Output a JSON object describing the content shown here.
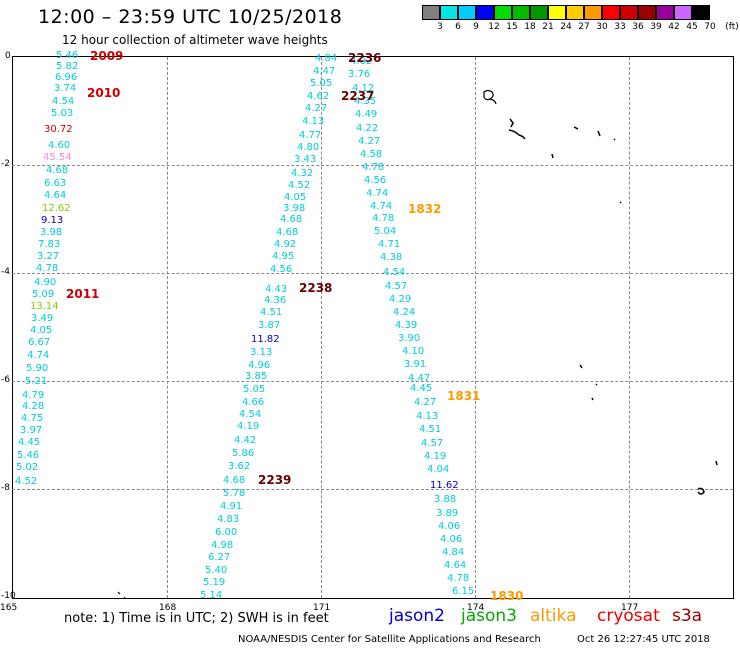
{
  "title": "12:00 – 23:59 UTC 10/25/2018",
  "subtitle": "12 hour collection of altimeter wave heights",
  "legend": {
    "labels": [
      "3",
      "6",
      "9",
      "12",
      "15",
      "18",
      "21",
      "24",
      "27",
      "30",
      "33",
      "36",
      "39",
      "42",
      "45",
      "70",
      "(ft)"
    ],
    "colors": [
      "#7f7f7f",
      "#00e6e6",
      "#00ccff",
      "#0000ff",
      "#00dd00",
      "#00bb00",
      "#009900",
      "#ffff00",
      "#ffcc00",
      "#ff9900",
      "#ff0000",
      "#cc0000",
      "#990000",
      "#990099",
      "#cc66ff",
      "#000000"
    ]
  },
  "axes": {
    "lon_ticks": [
      "165",
      "168",
      "171",
      "174",
      "177"
    ],
    "lat_ticks": [
      "0",
      "-2",
      "-4",
      "-6",
      "-8",
      "-10"
    ]
  },
  "observations": [
    {
      "v": "5.46",
      "c": "#00ccdd"
    },
    {
      "v": "5.82",
      "c": "#00ccdd"
    },
    {
      "v": "6.96",
      "c": "#00ccdd"
    },
    {
      "v": "3.74",
      "c": "#00ccdd"
    },
    {
      "v": "4.54",
      "c": "#00ccdd"
    },
    {
      "v": "5.03",
      "c": "#00ccdd"
    },
    {
      "v": "30.72",
      "c": "#cc0000"
    },
    {
      "v": "4.60",
      "c": "#00ccdd"
    },
    {
      "v": "45.54",
      "c": "#ee88ee"
    },
    {
      "v": "4.68",
      "c": "#00ccdd"
    },
    {
      "v": "6.63",
      "c": "#00ccdd"
    },
    {
      "v": "4.64",
      "c": "#00ccdd"
    },
    {
      "v": "12.62",
      "c": "#88cc00"
    },
    {
      "v": "9.13",
      "c": "#0000cc"
    },
    {
      "v": "3.98",
      "c": "#00ccdd"
    },
    {
      "v": "7.83",
      "c": "#00ccdd"
    },
    {
      "v": "3.27",
      "c": "#00ccdd"
    },
    {
      "v": "4.78",
      "c": "#00ccdd"
    },
    {
      "v": "4.90",
      "c": "#00ccdd"
    },
    {
      "v": "5.09",
      "c": "#00ccdd"
    },
    {
      "v": "13.14",
      "c": "#88cc00"
    },
    {
      "v": "3.49",
      "c": "#00ccdd"
    },
    {
      "v": "4.05",
      "c": "#00ccdd"
    },
    {
      "v": "6.67",
      "c": "#00ccdd"
    },
    {
      "v": "4.74",
      "c": "#00ccdd"
    },
    {
      "v": "5.90",
      "c": "#00ccdd"
    },
    {
      "v": "5.21",
      "c": "#00ccdd"
    },
    {
      "v": "4.79",
      "c": "#00ccdd"
    },
    {
      "v": "4.28",
      "c": "#00ccdd"
    },
    {
      "v": "4.75",
      "c": "#00ccdd"
    },
    {
      "v": "3.97",
      "c": "#00ccdd"
    },
    {
      "v": "4.45",
      "c": "#00ccdd"
    },
    {
      "v": "5.46",
      "c": "#00ccdd"
    },
    {
      "v": "5.02",
      "c": "#00ccdd"
    },
    {
      "v": "4.52",
      "c": "#00ccdd"
    },
    {
      "v": "4.84",
      "c": "#00ccdd"
    },
    {
      "v": "4.47",
      "c": "#00ccdd"
    },
    {
      "v": "5.05",
      "c": "#00ccdd"
    },
    {
      "v": "4.62",
      "c": "#00ccdd"
    },
    {
      "v": "4.27",
      "c": "#00ccdd"
    },
    {
      "v": "4.13",
      "c": "#00ccdd"
    },
    {
      "v": "4.77",
      "c": "#00ccdd"
    },
    {
      "v": "4.80",
      "c": "#00ccdd"
    },
    {
      "v": "3.43",
      "c": "#00ccdd"
    },
    {
      "v": "4.32",
      "c": "#00ccdd"
    },
    {
      "v": "4.52",
      "c": "#00ccdd"
    },
    {
      "v": "4.05",
      "c": "#00ccdd"
    },
    {
      "v": "3.98",
      "c": "#00ccdd"
    },
    {
      "v": "4.68",
      "c": "#00ccdd"
    },
    {
      "v": "4.68",
      "c": "#00ccdd"
    },
    {
      "v": "4.92",
      "c": "#00ccdd"
    },
    {
      "v": "4.95",
      "c": "#00ccdd"
    },
    {
      "v": "4.56",
      "c": "#00ccdd"
    },
    {
      "v": "4.43",
      "c": "#00ccdd"
    },
    {
      "v": "4.36",
      "c": "#00ccdd"
    },
    {
      "v": "4.51",
      "c": "#00ccdd"
    },
    {
      "v": "3.87",
      "c": "#00ccdd"
    },
    {
      "v": "11.82",
      "c": "#0000cc"
    },
    {
      "v": "3.13",
      "c": "#00ccdd"
    },
    {
      "v": "4.96",
      "c": "#00ccdd"
    },
    {
      "v": "3.85",
      "c": "#00ccdd"
    },
    {
      "v": "5.05",
      "c": "#00ccdd"
    },
    {
      "v": "4.66",
      "c": "#00ccdd"
    },
    {
      "v": "4.54",
      "c": "#00ccdd"
    },
    {
      "v": "4.19",
      "c": "#00ccdd"
    },
    {
      "v": "4.42",
      "c": "#00ccdd"
    },
    {
      "v": "5.86",
      "c": "#00ccdd"
    },
    {
      "v": "3.62",
      "c": "#00ccdd"
    },
    {
      "v": "4.68",
      "c": "#00ccdd"
    },
    {
      "v": "5.78",
      "c": "#00ccdd"
    },
    {
      "v": "4.91",
      "c": "#00ccdd"
    },
    {
      "v": "4.83",
      "c": "#00ccdd"
    },
    {
      "v": "6.00",
      "c": "#00ccdd"
    },
    {
      "v": "4.98",
      "c": "#00ccdd"
    },
    {
      "v": "6.27",
      "c": "#00ccdd"
    },
    {
      "v": "5.40",
      "c": "#00ccdd"
    },
    {
      "v": "5.19",
      "c": "#00ccdd"
    },
    {
      "v": "5.14",
      "c": "#00ccdd"
    },
    {
      "v": "4.02",
      "c": "#00ccdd"
    },
    {
      "v": "3.76",
      "c": "#00ccdd"
    },
    {
      "v": "4.12",
      "c": "#00ccdd"
    },
    {
      "v": "4.35",
      "c": "#00ccdd"
    },
    {
      "v": "4.49",
      "c": "#00ccdd"
    },
    {
      "v": "4.22",
      "c": "#00ccdd"
    },
    {
      "v": "4.27",
      "c": "#00ccdd"
    },
    {
      "v": "4.58",
      "c": "#00ccdd"
    },
    {
      "v": "4.78",
      "c": "#00ccdd"
    },
    {
      "v": "4.56",
      "c": "#00ccdd"
    },
    {
      "v": "4.74",
      "c": "#00ccdd"
    },
    {
      "v": "4.74",
      "c": "#00ccdd"
    },
    {
      "v": "4.78",
      "c": "#00ccdd"
    },
    {
      "v": "5.04",
      "c": "#00ccdd"
    },
    {
      "v": "4.71",
      "c": "#00ccdd"
    },
    {
      "v": "4.38",
      "c": "#00ccdd"
    },
    {
      "v": "4.54",
      "c": "#00ccdd"
    },
    {
      "v": "4.57",
      "c": "#00ccdd"
    },
    {
      "v": "4.29",
      "c": "#00ccdd"
    },
    {
      "v": "4.24",
      "c": "#00ccdd"
    },
    {
      "v": "4.39",
      "c": "#00ccdd"
    },
    {
      "v": "3.90",
      "c": "#00ccdd"
    },
    {
      "v": "4.10",
      "c": "#00ccdd"
    },
    {
      "v": "3.91",
      "c": "#00ccdd"
    },
    {
      "v": "4.47",
      "c": "#00ccdd"
    },
    {
      "v": "4.45",
      "c": "#00ccdd"
    },
    {
      "v": "4.27",
      "c": "#00ccdd"
    },
    {
      "v": "4.13",
      "c": "#00ccdd"
    },
    {
      "v": "4.51",
      "c": "#00ccdd"
    },
    {
      "v": "4.57",
      "c": "#00ccdd"
    },
    {
      "v": "4.19",
      "c": "#00ccdd"
    },
    {
      "v": "4.04",
      "c": "#00ccdd"
    },
    {
      "v": "11.62",
      "c": "#0000cc"
    },
    {
      "v": "3.88",
      "c": "#00ccdd"
    },
    {
      "v": "3.89",
      "c": "#00ccdd"
    },
    {
      "v": "4.06",
      "c": "#00ccdd"
    },
    {
      "v": "4.06",
      "c": "#00ccdd"
    },
    {
      "v": "4.84",
      "c": "#00ccdd"
    },
    {
      "v": "4.64",
      "c": "#00ccdd"
    },
    {
      "v": "4.78",
      "c": "#00ccdd"
    },
    {
      "v": "6.15",
      "c": "#00ccdd"
    }
  ],
  "time_labels": [
    {
      "v": "2009",
      "c": "#cc0000"
    },
    {
      "v": "2010",
      "c": "#cc0000"
    },
    {
      "v": "2011",
      "c": "#cc0000"
    },
    {
      "v": "2236",
      "c": "#660000"
    },
    {
      "v": "2237",
      "c": "#660000"
    },
    {
      "v": "2238",
      "c": "#660000"
    },
    {
      "v": "2239",
      "c": "#660000"
    },
    {
      "v": "1832",
      "c": "#ff9900"
    },
    {
      "v": "1831",
      "c": "#ff9900"
    },
    {
      "v": "1830",
      "c": "#ff9900"
    }
  ],
  "note": "note:  1) Time is in UTC;  2) SWH is in feet",
  "satellites": [
    {
      "name": "jason2",
      "color": "#0000cc"
    },
    {
      "name": "jason3",
      "color": "#00aa00"
    },
    {
      "name": "altika",
      "color": "#ff9900"
    },
    {
      "name": "cryosat",
      "color": "#ee0000"
    },
    {
      "name": "s3a",
      "color": "#990000"
    }
  ],
  "footer_left": "NOAA/NESDIS Center for Satellite Applications and Research",
  "footer_right": "Oct 26 12:27:45 UTC 2018"
}
